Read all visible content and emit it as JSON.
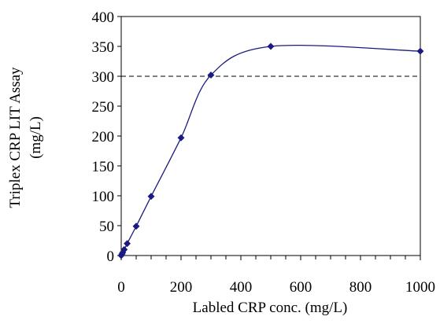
{
  "chart_data": {
    "type": "line",
    "title": "",
    "xlabel": "Labled CRP conc. (mg/L)",
    "ylabel_line1": "Triplex CRP LIT Assay",
    "ylabel_line2": "(mg/L)",
    "xlim": [
      0,
      1000
    ],
    "ylim": [
      0,
      400
    ],
    "x_ticks": [
      0,
      200,
      400,
      600,
      800,
      1000
    ],
    "y_ticks": [
      0,
      50,
      100,
      150,
      200,
      250,
      300,
      350,
      400
    ],
    "x_minor_step": 50,
    "grid": false,
    "reference_line": {
      "y": 300,
      "style": "dashed"
    },
    "series": [
      {
        "color": "#1a1a80",
        "marker": "diamond",
        "x": [
          0,
          2.5,
          5,
          10,
          20,
          50,
          100,
          200,
          300,
          500,
          1000
        ],
        "y": [
          0,
          2.5,
          5,
          10,
          20,
          49,
          99,
          197,
          302,
          350,
          342
        ]
      }
    ]
  }
}
